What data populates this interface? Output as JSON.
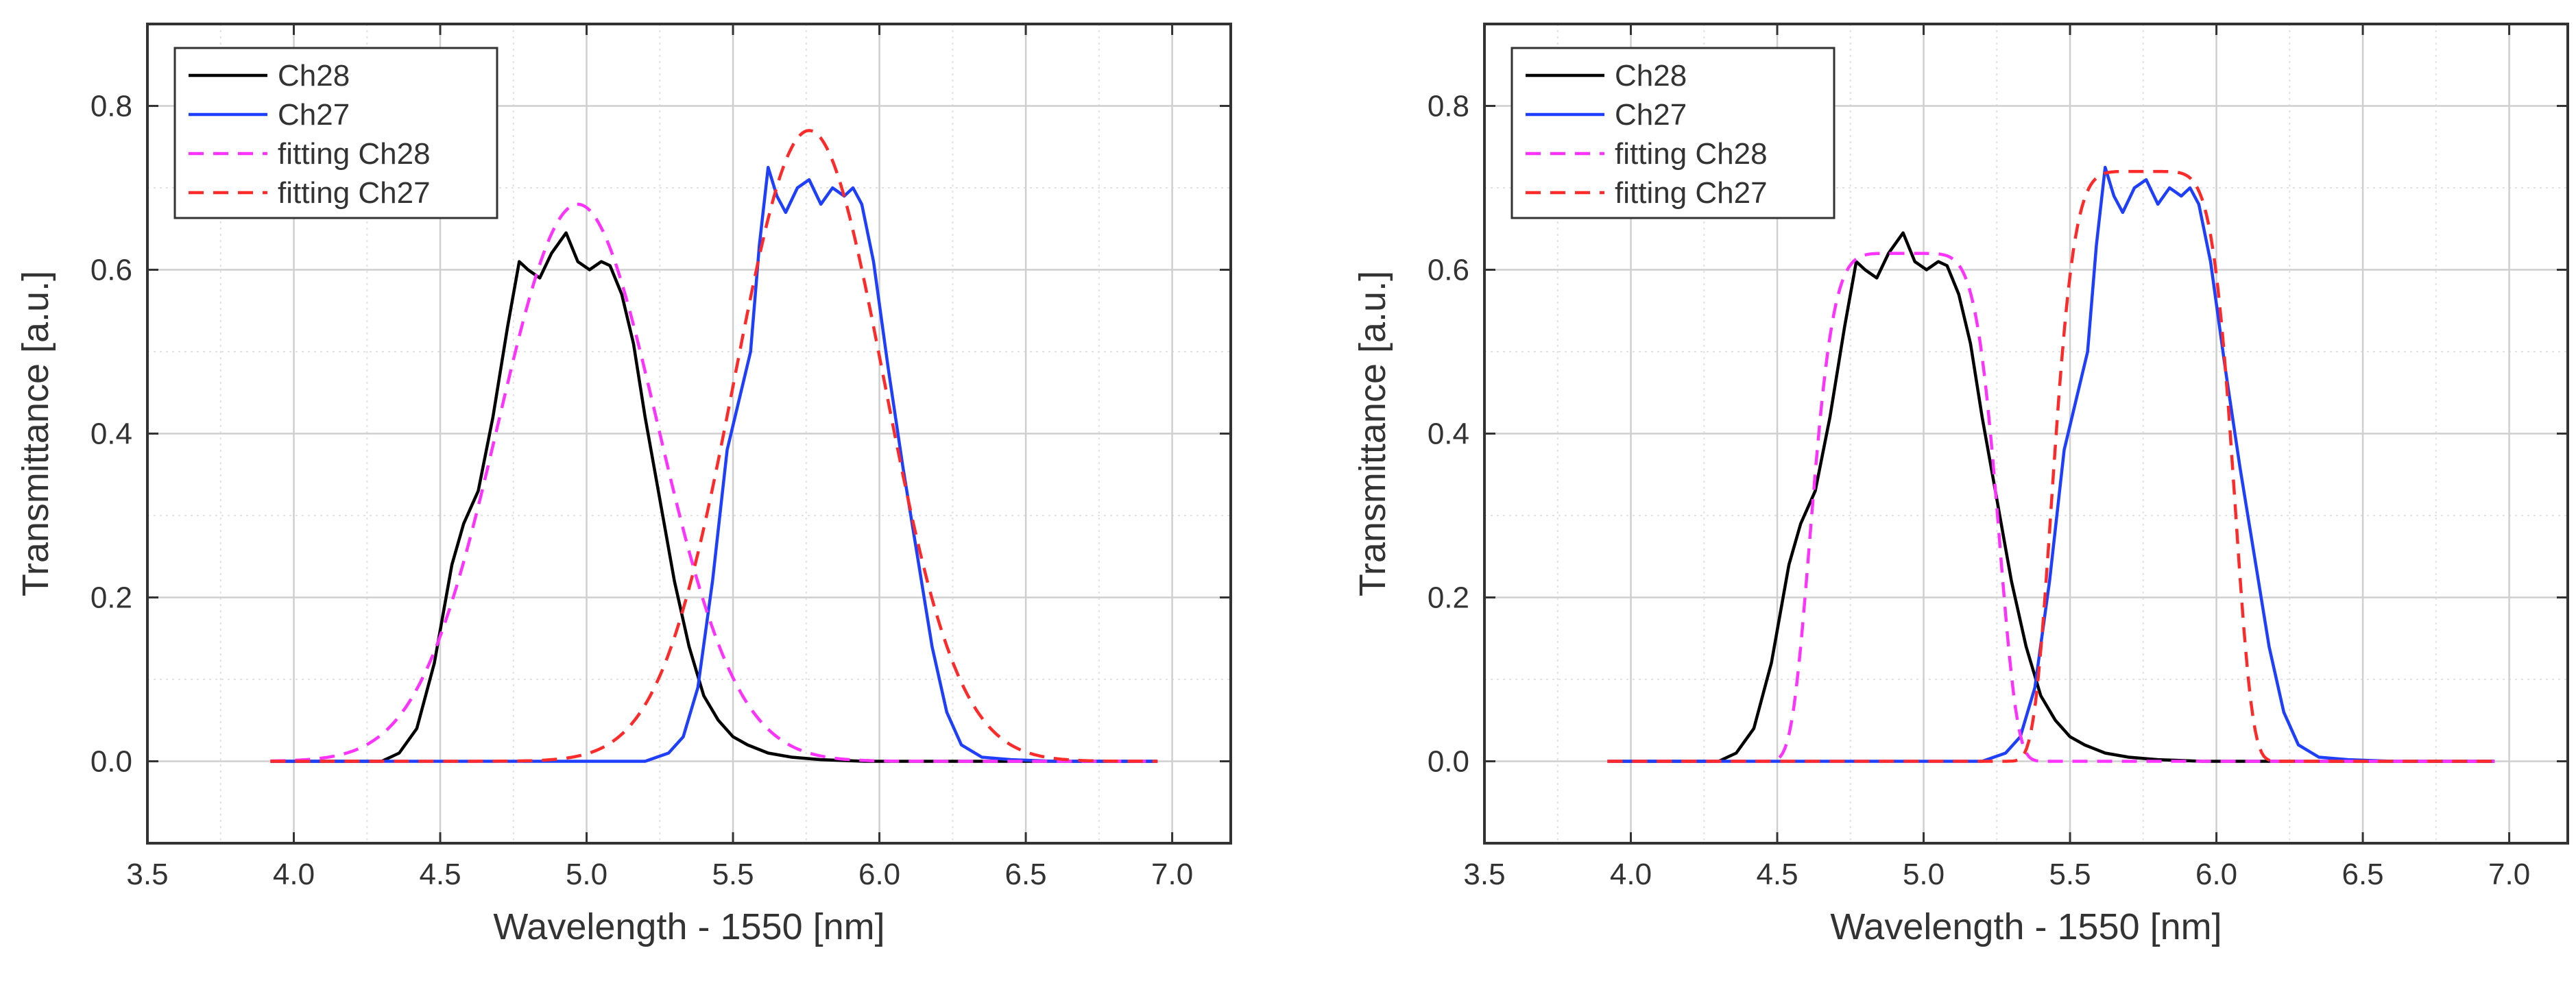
{
  "chart_data": [
    {
      "type": "line",
      "title": "",
      "xlabel": "Wavelength - 1550 [nm]",
      "ylabel": "Transmittance [a.u.]",
      "xlim": [
        3.5,
        7.2
      ],
      "ylim": [
        -0.1,
        0.9
      ],
      "xticks": [
        3.5,
        4.0,
        4.5,
        5.0,
        5.5,
        6.0,
        6.5,
        7.0
      ],
      "xtick_labels": [
        "3.5",
        "4.0",
        "4.5",
        "5.0",
        "5.5",
        "6.0",
        "6.5",
        "7.0"
      ],
      "yticks": [
        0.0,
        0.2,
        0.4,
        0.6,
        0.8
      ],
      "ytick_labels": [
        "0.0",
        "0.2",
        "0.4",
        "0.6",
        "0.8"
      ],
      "grid": true,
      "legend_position": "top-left",
      "series": [
        {
          "name": "Ch28",
          "color": "#000000",
          "dash": "solid",
          "x": [
            3.92,
            4.3,
            4.36,
            4.42,
            4.48,
            4.54,
            4.58,
            4.63,
            4.68,
            4.73,
            4.77,
            4.8,
            4.84,
            4.88,
            4.93,
            4.97,
            5.01,
            5.05,
            5.08,
            5.12,
            5.16,
            5.2,
            5.25,
            5.3,
            5.35,
            5.4,
            5.45,
            5.5,
            5.55,
            5.62,
            5.7,
            5.8,
            5.95,
            6.2,
            6.95
          ],
          "y": [
            0.0,
            0.0,
            0.01,
            0.04,
            0.12,
            0.24,
            0.29,
            0.33,
            0.42,
            0.53,
            0.61,
            0.6,
            0.59,
            0.62,
            0.645,
            0.61,
            0.6,
            0.61,
            0.605,
            0.57,
            0.51,
            0.42,
            0.32,
            0.22,
            0.14,
            0.08,
            0.05,
            0.03,
            0.02,
            0.01,
            0.005,
            0.002,
            0.0,
            0.0,
            0.0
          ]
        },
        {
          "name": "Ch27",
          "color": "#1f3fff",
          "dash": "solid",
          "x": [
            3.92,
            5.2,
            5.28,
            5.33,
            5.38,
            5.43,
            5.48,
            5.52,
            5.56,
            5.59,
            5.62,
            5.65,
            5.68,
            5.72,
            5.76,
            5.8,
            5.84,
            5.88,
            5.91,
            5.94,
            5.98,
            6.03,
            6.08,
            6.13,
            6.18,
            6.23,
            6.28,
            6.35,
            6.45,
            6.6,
            6.95
          ],
          "y": [
            0.0,
            0.0,
            0.01,
            0.03,
            0.09,
            0.22,
            0.38,
            0.44,
            0.5,
            0.63,
            0.725,
            0.69,
            0.67,
            0.7,
            0.71,
            0.68,
            0.7,
            0.69,
            0.7,
            0.68,
            0.61,
            0.48,
            0.36,
            0.25,
            0.14,
            0.06,
            0.02,
            0.005,
            0.002,
            0.0,
            0.0
          ]
        },
        {
          "name": "fitting Ch28",
          "color": "#ff33ff",
          "dash": "dashed",
          "gaussian": {
            "amp": 0.68,
            "center": 4.97,
            "sigma": 0.272
          },
          "x_range": [
            3.92,
            6.95
          ]
        },
        {
          "name": "fitting Ch27",
          "color": "#ff2a2a",
          "dash": "dashed",
          "gaussian": {
            "amp": 0.77,
            "center": 5.76,
            "sigma": 0.255
          },
          "x_range": [
            3.92,
            6.95
          ]
        }
      ]
    },
    {
      "type": "line",
      "title": "",
      "xlabel": "Wavelength - 1550 [nm]",
      "ylabel": "Transmittance [a.u.]",
      "xlim": [
        3.5,
        7.2
      ],
      "ylim": [
        -0.1,
        0.9
      ],
      "xticks": [
        3.5,
        4.0,
        4.5,
        5.0,
        5.5,
        6.0,
        6.5,
        7.0
      ],
      "xtick_labels": [
        "3.5",
        "4.0",
        "4.5",
        "5.0",
        "5.5",
        "6.0",
        "6.5",
        "7.0"
      ],
      "yticks": [
        0.0,
        0.2,
        0.4,
        0.6,
        0.8
      ],
      "ytick_labels": [
        "0.0",
        "0.2",
        "0.4",
        "0.6",
        "0.8"
      ],
      "grid": true,
      "legend_position": "top-left",
      "series": [
        {
          "name": "Ch28",
          "color": "#000000",
          "dash": "solid",
          "x": [
            3.92,
            4.3,
            4.36,
            4.42,
            4.48,
            4.54,
            4.58,
            4.63,
            4.68,
            4.73,
            4.77,
            4.8,
            4.84,
            4.88,
            4.93,
            4.97,
            5.01,
            5.05,
            5.08,
            5.12,
            5.16,
            5.2,
            5.25,
            5.3,
            5.35,
            5.4,
            5.45,
            5.5,
            5.55,
            5.62,
            5.7,
            5.8,
            5.95,
            6.2,
            6.95
          ],
          "y": [
            0.0,
            0.0,
            0.01,
            0.04,
            0.12,
            0.24,
            0.29,
            0.33,
            0.42,
            0.53,
            0.61,
            0.6,
            0.59,
            0.62,
            0.645,
            0.61,
            0.6,
            0.61,
            0.605,
            0.57,
            0.51,
            0.42,
            0.32,
            0.22,
            0.14,
            0.08,
            0.05,
            0.03,
            0.02,
            0.01,
            0.005,
            0.002,
            0.0,
            0.0,
            0.0
          ]
        },
        {
          "name": "Ch27",
          "color": "#1f3fff",
          "dash": "solid",
          "x": [
            3.92,
            5.2,
            5.28,
            5.33,
            5.38,
            5.43,
            5.48,
            5.52,
            5.56,
            5.59,
            5.62,
            5.65,
            5.68,
            5.72,
            5.76,
            5.8,
            5.84,
            5.88,
            5.91,
            5.94,
            5.98,
            6.03,
            6.08,
            6.13,
            6.18,
            6.23,
            6.28,
            6.35,
            6.45,
            6.6,
            6.95
          ],
          "y": [
            0.0,
            0.0,
            0.01,
            0.03,
            0.09,
            0.22,
            0.38,
            0.44,
            0.5,
            0.63,
            0.725,
            0.69,
            0.67,
            0.7,
            0.71,
            0.68,
            0.7,
            0.69,
            0.7,
            0.68,
            0.61,
            0.48,
            0.36,
            0.25,
            0.14,
            0.06,
            0.02,
            0.005,
            0.002,
            0.0,
            0.0
          ]
        },
        {
          "name": "fitting Ch28",
          "color": "#ff33ff",
          "dash": "dashed",
          "supergaussian": {
            "amp": 0.62,
            "center": 4.935,
            "halfwidth": 0.315,
            "order": 3.2
          },
          "x_range": [
            3.92,
            6.95
          ]
        },
        {
          "name": "fitting Ch27",
          "color": "#ff2a2a",
          "dash": "dashed",
          "supergaussian": {
            "amp": 0.72,
            "center": 5.75,
            "halfwidth": 0.305,
            "order": 3.2
          },
          "x_range": [
            3.92,
            6.95
          ]
        }
      ]
    }
  ]
}
